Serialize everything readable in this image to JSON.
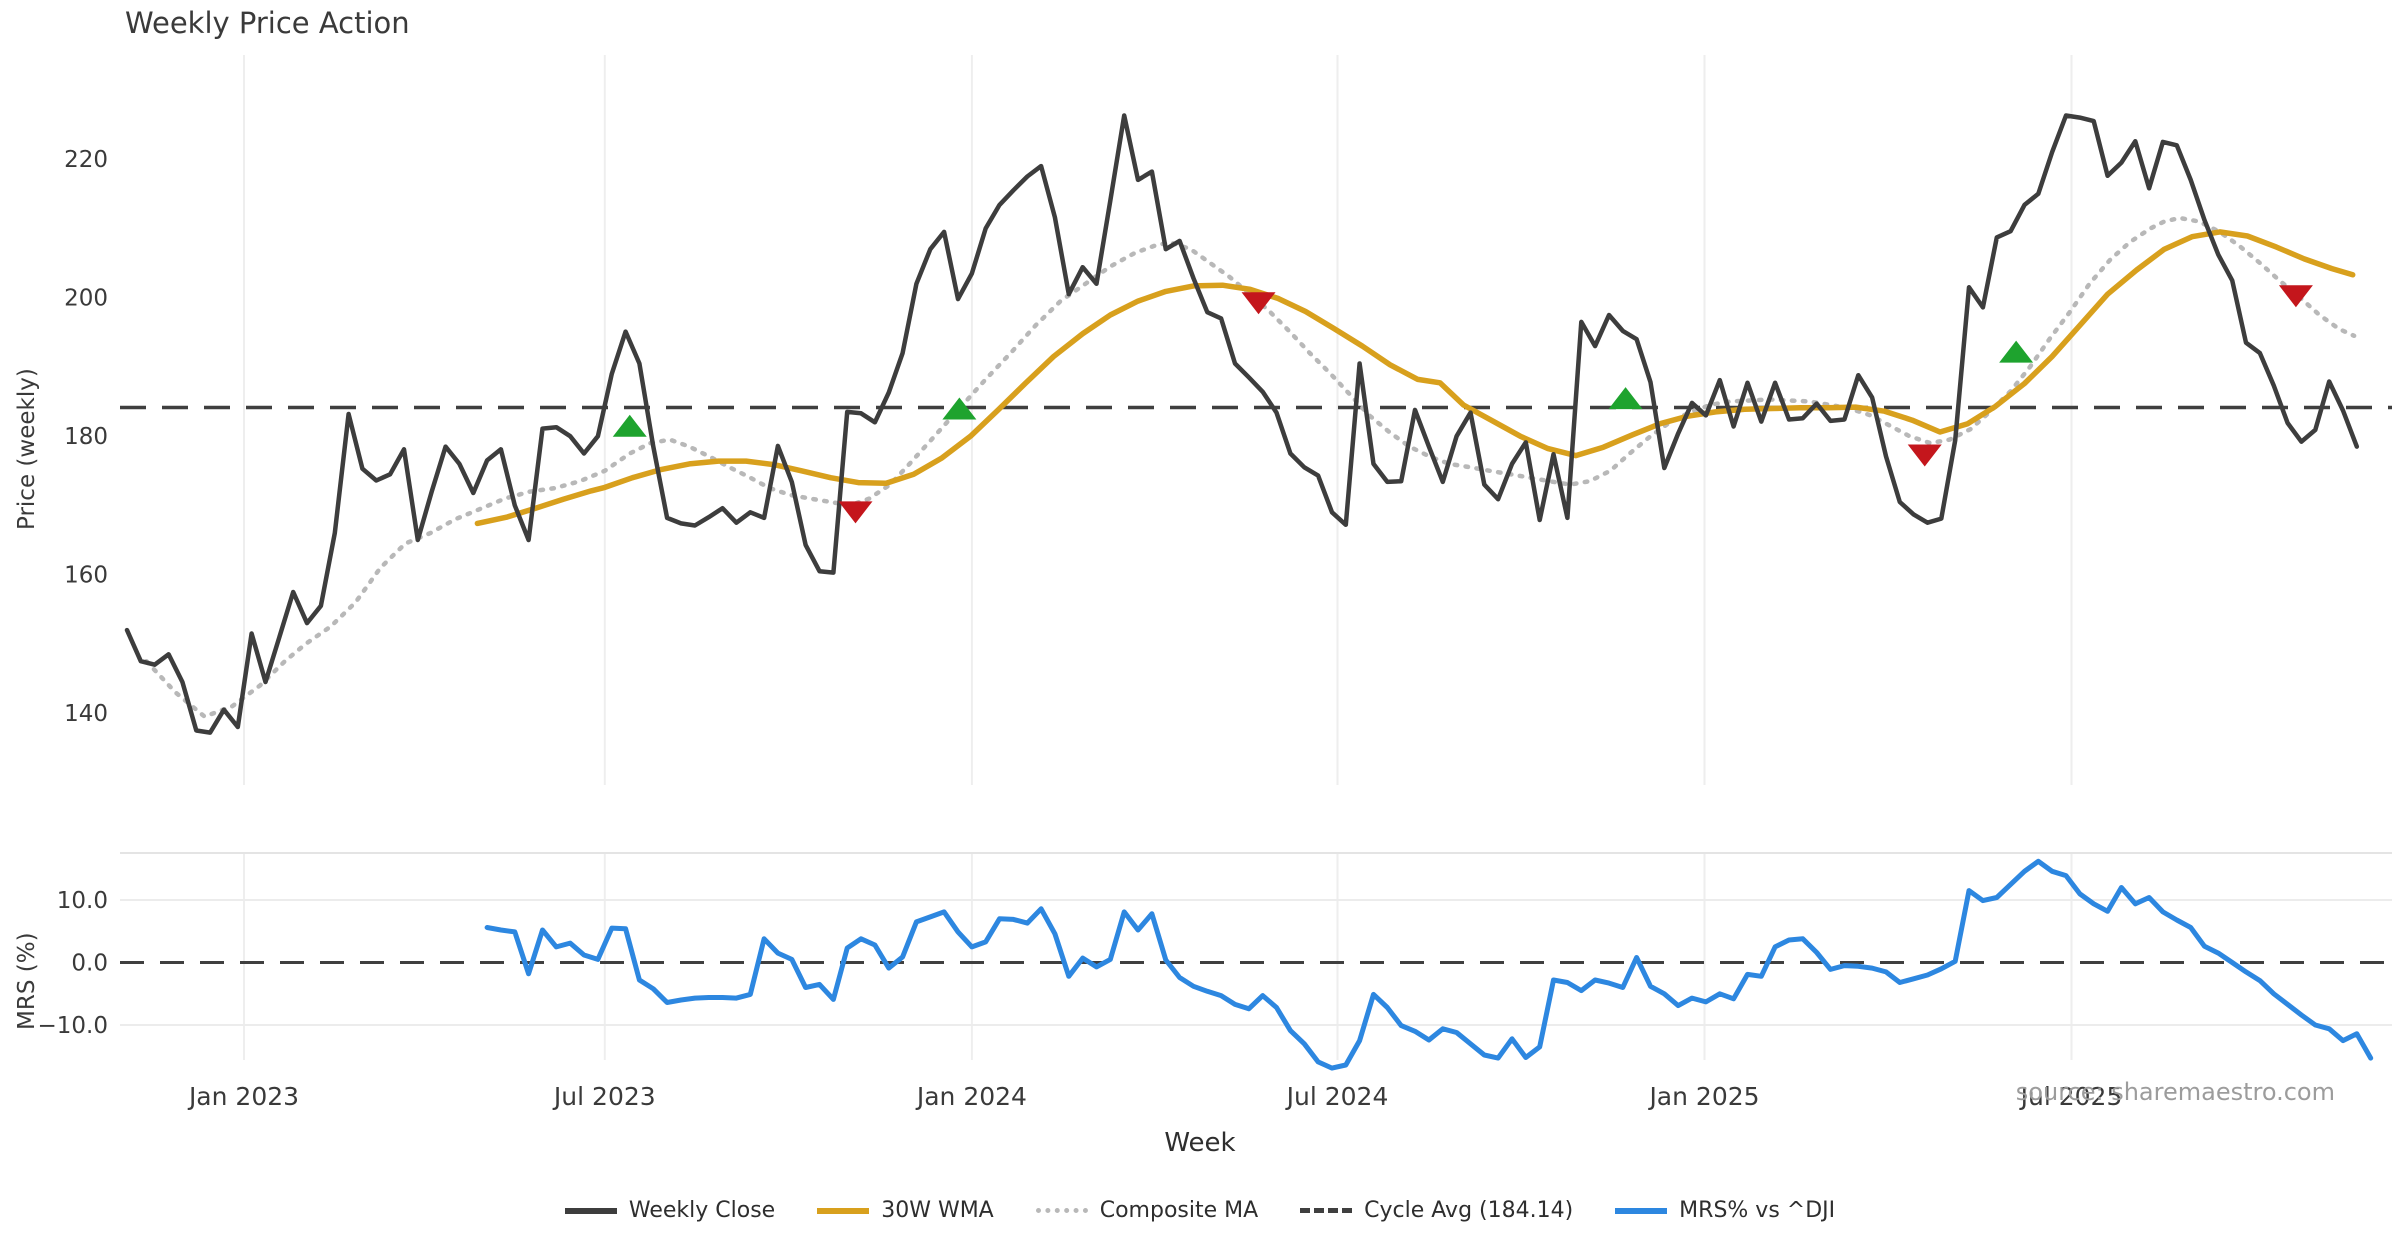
{
  "title": "Weekly Price Action",
  "source_note": "source: sharemaestro.com",
  "xlabel": "Week",
  "colors": {
    "close": "#3d3d3d",
    "wma": "#d8a01d",
    "composite": "#b8b8b8",
    "cycle": "#3f3f3f",
    "mrs": "#2d87e0",
    "buy": "#1ea32e",
    "sell": "#c4161c",
    "grid": "#eeeeee",
    "tick_text": "#3a3a3a"
  },
  "legend": [
    {
      "label": "Weekly Close",
      "color": "#3d3d3d",
      "style": "solid"
    },
    {
      "label": "30W WMA",
      "color": "#d8a01d",
      "style": "solid"
    },
    {
      "label": "Composite MA",
      "color": "#b8b8b8",
      "style": "dotted"
    },
    {
      "label": "Cycle Avg (184.14)",
      "color": "#3f3f3f",
      "style": "dashed"
    },
    {
      "label": "MRS% vs ^DJI",
      "color": "#2d87e0",
      "style": "solid"
    }
  ],
  "chart_data": {
    "type": "line",
    "title": "Weekly Price Action",
    "xlabel": "Week",
    "panels": [
      {
        "name": "price",
        "ylabel": "Price (weekly)",
        "yticks": [
          140,
          160,
          180,
          200,
          220
        ],
        "ylim": [
          130,
          234
        ]
      },
      {
        "name": "mrs",
        "ylabel": "MRS (%)",
        "yticks": [
          -10.0,
          0.0,
          10.0
        ],
        "tick_format": [
          "−10.0",
          "0.0",
          "10.0"
        ],
        "ylim": [
          -17.5,
          17.5
        ]
      }
    ],
    "x_ticks": [
      {
        "label": "Jan 2023",
        "week": 8.45
      },
      {
        "label": "Jul 2023",
        "week": 34.5
      },
      {
        "label": "Jan 2024",
        "week": 61.0
      },
      {
        "label": "Jul 2024",
        "week": 87.4
      },
      {
        "label": "Jan 2025",
        "week": 113.9
      },
      {
        "label": "Jul 2025",
        "week": 140.4
      }
    ],
    "cycle_avg": 184.14,
    "series": {
      "weekly_close": {
        "name": "Weekly Close",
        "panel": "price",
        "start_week": 0,
        "values": [
          152,
          147.5,
          147,
          148.5,
          144.5,
          137.5,
          137.2,
          140.5,
          138,
          151.5,
          144.5,
          151,
          157.5,
          153,
          155.5,
          166,
          183.2,
          175.3,
          173.6,
          174.5,
          178.1,
          165,
          172,
          178.5,
          176,
          171.8,
          176.5,
          178.1,
          170,
          165,
          181.1,
          181.3,
          180,
          177.5,
          180,
          189,
          195.1,
          190.5,
          178.5,
          168.2,
          167.4,
          167.1,
          168.3,
          169.6,
          167.5,
          169,
          168.2,
          178.6,
          173.4,
          164.3,
          160.5,
          160.3,
          183.5,
          183.3,
          182,
          186.3,
          192,
          202,
          207,
          209.5,
          199.8,
          203.5,
          210,
          213.4,
          215.5,
          217.5,
          219,
          211.6,
          200.5,
          204.4,
          202,
          214,
          226.3,
          217,
          218.2,
          207,
          208.2,
          202.8,
          197.9,
          197,
          190.5,
          188.5,
          186.4,
          183.4,
          177.5,
          175.5,
          174.3,
          169,
          167.2,
          190.5,
          176,
          173.4,
          173.5,
          183.8,
          178.5,
          173.4,
          180,
          183.4,
          173,
          170.9,
          176,
          179.1,
          167.9,
          177.4,
          168.2,
          196.5,
          193,
          197.5,
          195.2,
          194,
          187.8,
          175.4,
          180.4,
          184.8,
          183,
          188.1,
          181.4,
          187.7,
          182.1,
          187.7,
          182.4,
          182.6,
          184.7,
          182.2,
          182.4,
          188.8,
          185.6,
          177.1,
          170.5,
          168.7,
          167.5,
          168.1,
          179.4,
          201.5,
          198.6,
          208.7,
          209.6,
          213.4,
          215,
          221,
          226.3,
          226,
          225.5,
          217.6,
          219.5,
          222.6,
          215.8,
          222.5,
          222,
          217,
          211.2,
          206.2,
          202.5,
          193.5,
          192,
          187.3,
          181.9,
          179.2,
          180.9,
          187.9,
          183.7,
          178.5
        ]
      },
      "wma30": {
        "name": "30W WMA",
        "panel": "price",
        "points": [
          [
            25.3,
            167.4
          ],
          [
            27.4,
            168.3
          ],
          [
            29.5,
            169.6
          ],
          [
            31.5,
            170.9
          ],
          [
            33.5,
            172.1
          ],
          [
            34.5,
            172.6
          ],
          [
            36.5,
            174.0
          ],
          [
            38.6,
            175.2
          ],
          [
            40.6,
            176.0
          ],
          [
            42.7,
            176.4
          ],
          [
            44.7,
            176.4
          ],
          [
            46.7,
            175.9
          ],
          [
            48.7,
            175.0
          ],
          [
            50.8,
            174.0
          ],
          [
            52.8,
            173.3
          ],
          [
            54.8,
            173.2
          ],
          [
            56.8,
            174.5
          ],
          [
            58.8,
            176.8
          ],
          [
            60.9,
            180.0
          ],
          [
            62.9,
            183.8
          ],
          [
            64.9,
            187.7
          ],
          [
            66.9,
            191.5
          ],
          [
            69.0,
            194.8
          ],
          [
            71.0,
            197.5
          ],
          [
            73.0,
            199.5
          ],
          [
            75.0,
            200.9
          ],
          [
            77.0,
            201.7
          ],
          [
            79.1,
            201.8
          ],
          [
            81.1,
            201.2
          ],
          [
            83.1,
            199.9
          ],
          [
            85.1,
            198.0
          ],
          [
            87.1,
            195.6
          ],
          [
            89.2,
            193.0
          ],
          [
            91.2,
            190.3
          ],
          [
            93.2,
            188.2
          ],
          [
            94.8,
            187.7
          ],
          [
            96.5,
            184.5
          ],
          [
            98.6,
            182.2
          ],
          [
            100.6,
            180.0
          ],
          [
            102.6,
            178.2
          ],
          [
            104.6,
            177.2
          ],
          [
            106.6,
            178.4
          ],
          [
            108.7,
            180.2
          ],
          [
            110.7,
            181.8
          ],
          [
            112.7,
            182.9
          ],
          [
            114.7,
            183.5
          ],
          [
            116.8,
            183.9
          ],
          [
            118.8,
            184.0
          ],
          [
            120.8,
            184.1
          ],
          [
            122.8,
            184.1
          ],
          [
            124.8,
            184.2
          ],
          [
            126.9,
            183.6
          ],
          [
            128.9,
            182.3
          ],
          [
            130.9,
            180.6
          ],
          [
            132.9,
            181.8
          ],
          [
            134.9,
            184.3
          ],
          [
            137.0,
            187.6
          ],
          [
            139.0,
            191.5
          ],
          [
            141.0,
            196.0
          ],
          [
            143.0,
            200.5
          ],
          [
            145.1,
            204.0
          ],
          [
            147.1,
            207.0
          ],
          [
            149.1,
            208.8
          ],
          [
            151.1,
            209.5
          ],
          [
            153.1,
            208.9
          ],
          [
            155.2,
            207.3
          ],
          [
            157.2,
            205.6
          ],
          [
            159.2,
            204.2
          ],
          [
            160.7,
            203.3
          ]
        ]
      },
      "composite": {
        "name": "Composite MA",
        "panel": "price",
        "points": [
          [
            1.4,
            147.5
          ],
          [
            3.5,
            143.0
          ],
          [
            5.6,
            139.5
          ],
          [
            7.6,
            141.0
          ],
          [
            9.6,
            144.0
          ],
          [
            11.4,
            147.5
          ],
          [
            12.9,
            150.0
          ],
          [
            14.7,
            152.5
          ],
          [
            16.5,
            156.0
          ],
          [
            18.3,
            161.0
          ],
          [
            20.1,
            164.5
          ],
          [
            21.9,
            166.0
          ],
          [
            23.7,
            168.0
          ],
          [
            25.5,
            169.5
          ],
          [
            27.3,
            171.0
          ],
          [
            29.1,
            172.0
          ],
          [
            30.9,
            172.5
          ],
          [
            32.7,
            173.5
          ],
          [
            34.5,
            175.0
          ],
          [
            36.3,
            177.5
          ],
          [
            37.8,
            179.0
          ],
          [
            39.2,
            179.5
          ],
          [
            40.6,
            178.5
          ],
          [
            42.1,
            177.0
          ],
          [
            43.5,
            175.5
          ],
          [
            45.0,
            174.0
          ],
          [
            46.4,
            172.5
          ],
          [
            47.9,
            171.5
          ],
          [
            49.3,
            171.0
          ],
          [
            50.8,
            170.5
          ],
          [
            52.2,
            170.0
          ],
          [
            53.6,
            171.0
          ],
          [
            55.1,
            173.0
          ],
          [
            56.5,
            176.0
          ],
          [
            58.3,
            180.0
          ],
          [
            60.1,
            184.0
          ],
          [
            61.9,
            188.0
          ],
          [
            63.8,
            192.0
          ],
          [
            65.6,
            196.0
          ],
          [
            67.4,
            199.5
          ],
          [
            69.2,
            202.0
          ],
          [
            71.0,
            204.5
          ],
          [
            72.8,
            206.5
          ],
          [
            74.2,
            207.5
          ],
          [
            75.3,
            208.0
          ],
          [
            76.8,
            207.0
          ],
          [
            78.2,
            205.0
          ],
          [
            79.6,
            203.0
          ],
          [
            81.1,
            200.5
          ],
          [
            82.5,
            198.0
          ],
          [
            84.0,
            195.0
          ],
          [
            85.4,
            192.0
          ],
          [
            86.9,
            189.0
          ],
          [
            88.3,
            186.0
          ],
          [
            89.7,
            183.0
          ],
          [
            91.2,
            180.5
          ],
          [
            92.6,
            178.5
          ],
          [
            94.1,
            177.0
          ],
          [
            95.5,
            176.0
          ],
          [
            97.0,
            175.5
          ],
          [
            98.4,
            175.0
          ],
          [
            99.9,
            174.5
          ],
          [
            101.3,
            174.0
          ],
          [
            102.7,
            173.5
          ],
          [
            104.2,
            173.0
          ],
          [
            105.6,
            173.5
          ],
          [
            107.1,
            175.0
          ],
          [
            108.5,
            177.5
          ],
          [
            110.0,
            180.0
          ],
          [
            111.4,
            182.0
          ],
          [
            112.9,
            183.5
          ],
          [
            114.3,
            184.5
          ],
          [
            115.7,
            185.0
          ],
          [
            118.6,
            185.3
          ],
          [
            121.5,
            185.0
          ],
          [
            123.0,
            184.5
          ],
          [
            124.4,
            184.0
          ],
          [
            125.9,
            183.0
          ],
          [
            127.3,
            181.5
          ],
          [
            128.7,
            180.0
          ],
          [
            130.2,
            179.0
          ],
          [
            131.6,
            179.5
          ],
          [
            133.1,
            181.0
          ],
          [
            134.5,
            183.5
          ],
          [
            136.0,
            186.5
          ],
          [
            137.4,
            190.0
          ],
          [
            138.8,
            194.0
          ],
          [
            140.3,
            198.0
          ],
          [
            141.7,
            202.0
          ],
          [
            143.2,
            205.5
          ],
          [
            144.6,
            208.0
          ],
          [
            146.1,
            210.0
          ],
          [
            147.1,
            211.0
          ],
          [
            148.2,
            211.5
          ],
          [
            149.6,
            211.0
          ],
          [
            151.1,
            209.5
          ],
          [
            152.5,
            207.5
          ],
          [
            154.0,
            205.0
          ],
          [
            155.4,
            202.5
          ],
          [
            156.9,
            200.0
          ],
          [
            158.3,
            197.5
          ],
          [
            159.7,
            195.5
          ],
          [
            160.8,
            194.5
          ]
        ]
      },
      "mrs": {
        "name": "MRS% vs ^DJI",
        "panel": "mrs",
        "start_week": 26,
        "values": [
          5.6,
          5.2,
          4.9,
          -1.8,
          5.2,
          2.5,
          3.1,
          1.2,
          0.5,
          5.5,
          5.4,
          -2.8,
          -4.2,
          -6.4,
          -6.0,
          -5.7,
          -5.6,
          -5.6,
          -5.7,
          -5.1,
          3.8,
          1.5,
          0.5,
          -4.0,
          -3.5,
          -5.9,
          2.3,
          3.8,
          2.8,
          -0.9,
          0.9,
          6.5,
          7.3,
          8.1,
          4.9,
          2.5,
          3.3,
          7.0,
          6.9,
          6.3,
          8.6,
          4.6,
          -2.2,
          0.7,
          -0.7,
          0.5,
          8.1,
          5.2,
          7.8,
          0.4,
          -2.4,
          -3.8,
          -4.6,
          -5.3,
          -6.7,
          -7.4,
          -5.3,
          -7.2,
          -10.9,
          -13.0,
          -15.9,
          -16.9,
          -16.4,
          -12.5,
          -5.1,
          -7.2,
          -10.1,
          -11.0,
          -12.4,
          -10.6,
          -11.2,
          -13.0,
          -14.8,
          -15.3,
          -12.2,
          -15.2,
          -13.5,
          -2.8,
          -3.2,
          -4.5,
          -2.8,
          -3.3,
          -4.0,
          0.8,
          -3.8,
          -5.0,
          -6.9,
          -5.7,
          -6.3,
          -5.0,
          -5.8,
          -1.9,
          -2.2,
          2.5,
          3.6,
          3.8,
          1.6,
          -1.1,
          -0.5,
          -0.6,
          -0.9,
          -1.5,
          -3.2,
          -2.6,
          -2.0,
          -1.0,
          0.2,
          11.5,
          9.9,
          10.4,
          12.5,
          14.6,
          16.2,
          14.6,
          13.9,
          11.0,
          9.4,
          8.2,
          12.0,
          9.4,
          10.4,
          8.1,
          6.8,
          5.6,
          2.6,
          1.5,
          0.0,
          -1.5,
          -2.9,
          -5.0,
          -6.7,
          -8.4,
          -10.0,
          -10.6,
          -12.5,
          -11.4,
          -15.3
        ]
      }
    },
    "markers": {
      "buy": [
        [
          36.3,
          181.5
        ],
        [
          60.1,
          184.0
        ],
        [
          108.2,
          185.5
        ],
        [
          136.4,
          192.2
        ]
      ],
      "sell": [
        [
          52.6,
          169.0
        ],
        [
          81.7,
          199.2
        ],
        [
          129.8,
          177.2
        ],
        [
          156.6,
          200.2
        ]
      ]
    }
  }
}
